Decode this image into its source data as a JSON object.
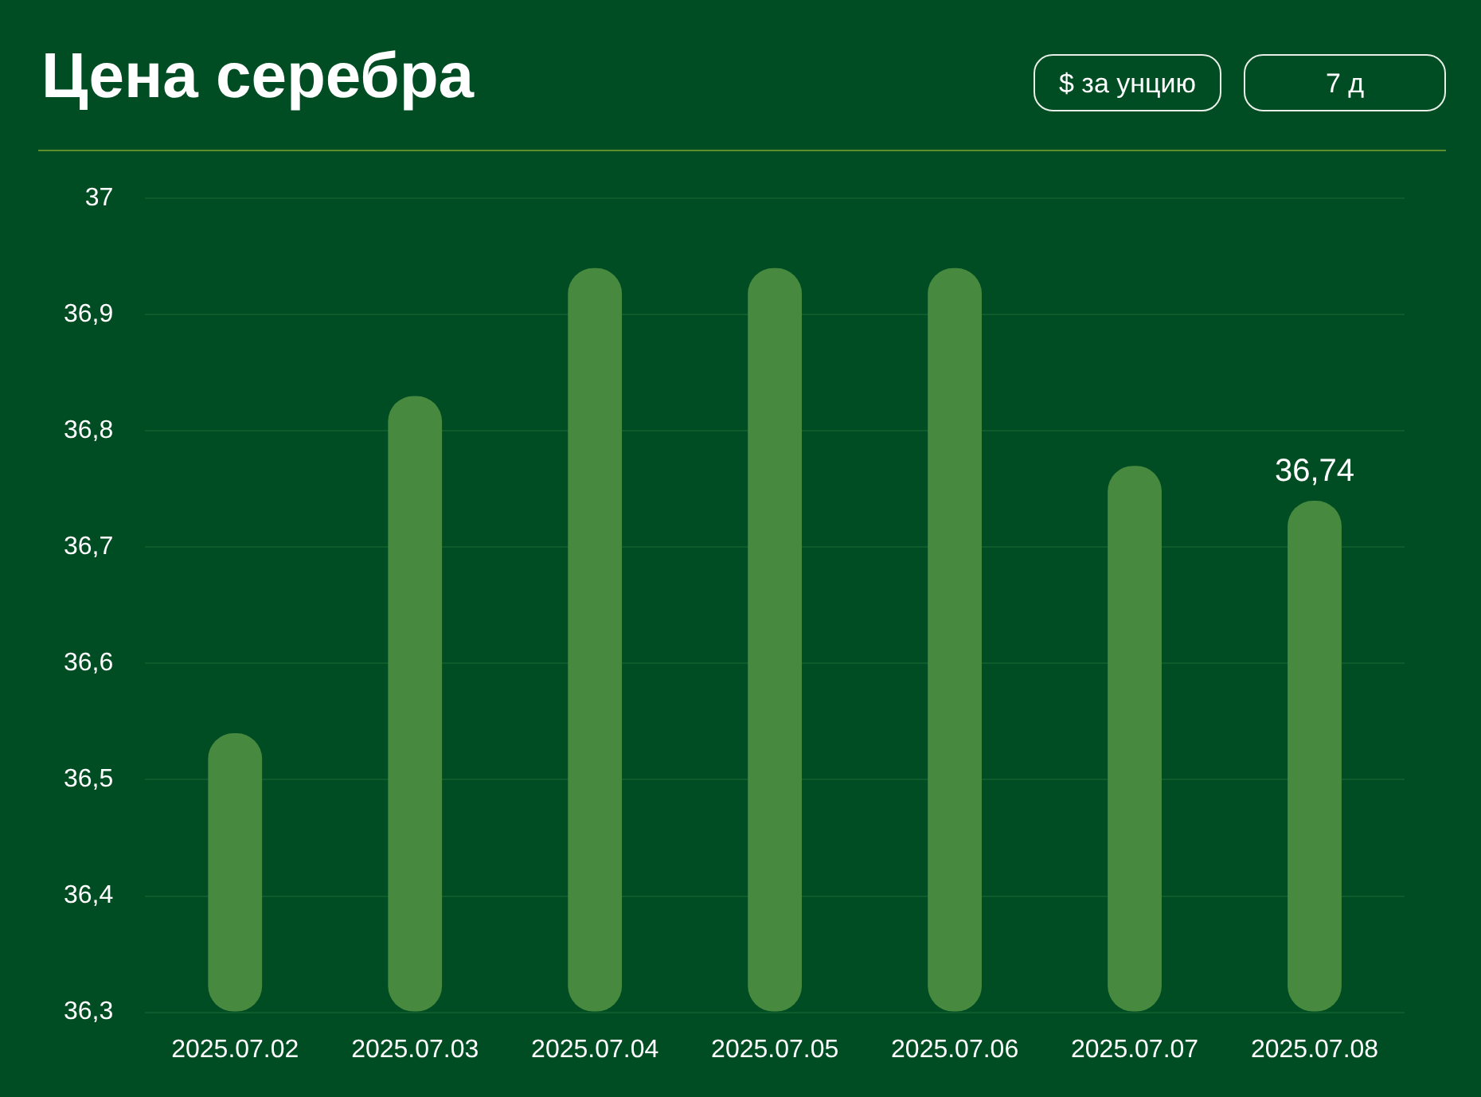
{
  "chart_data": {
    "type": "bar",
    "title": "Цена серебра",
    "annotations": [
      "$ за унцию",
      "7 д"
    ],
    "categories": [
      "2025.07.02",
      "2025.07.03",
      "2025.07.04",
      "2025.07.05",
      "2025.07.06",
      "2025.07.07",
      "2025.07.08"
    ],
    "values": [
      36.54,
      36.83,
      36.94,
      36.94,
      36.94,
      36.77,
      36.74
    ],
    "value_labels": [
      null,
      null,
      null,
      null,
      null,
      null,
      "36,74"
    ],
    "color": "#478a3f",
    "ylim": [
      36.3,
      37
    ],
    "yticks": [
      {
        "value": 36.3,
        "label": "36,3"
      },
      {
        "value": 36.4,
        "label": "36,4"
      },
      {
        "value": 36.5,
        "label": "36,5"
      },
      {
        "value": 36.6,
        "label": "36,6"
      },
      {
        "value": 36.7,
        "label": "36,7"
      },
      {
        "value": 36.8,
        "label": "36,8"
      },
      {
        "value": 36.9,
        "label": "36,9"
      },
      {
        "value": 37,
        "label": "37"
      }
    ],
    "grid": "y"
  }
}
